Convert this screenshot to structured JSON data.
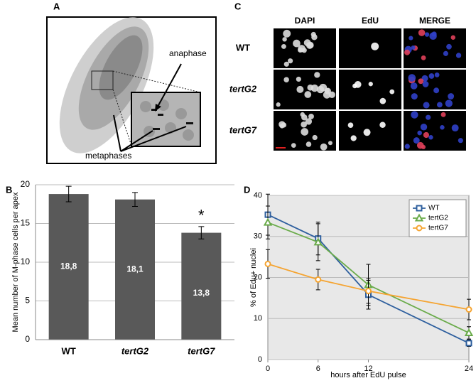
{
  "panels": {
    "a": {
      "label": "A",
      "annotations": [
        "anaphase",
        "metaphases"
      ]
    },
    "c": {
      "label": "C",
      "columns": [
        "DAPI",
        "EdU",
        "MERGE"
      ],
      "rows": [
        "WT",
        "tertG2",
        "tertG7"
      ]
    }
  },
  "chart_data": [
    {
      "type": "bar",
      "panel_label": "B",
      "y_label": "Mean number of M-phase cells per apex",
      "categories": [
        "WT",
        "tertG2",
        "tertG7"
      ],
      "values": [
        18.8,
        18.1,
        13.8
      ],
      "value_labels": [
        "18,8",
        "18,1",
        "13,8"
      ],
      "errors": [
        1.0,
        0.9,
        0.8
      ],
      "color": "#595959",
      "annotation": "*",
      "ylim": [
        0,
        20
      ],
      "yticks": [
        0,
        5,
        10,
        15,
        20
      ],
      "grid": true
    },
    {
      "type": "line",
      "panel_label": "D",
      "x_label": "hours after EdU pulse",
      "y_label": "% of Edu+ nuclei",
      "x": [
        0,
        6,
        12,
        24
      ],
      "series": [
        {
          "name": "WT",
          "color": "#2e5f9e",
          "marker": "square",
          "values": [
            35.3,
            29.5,
            15.8,
            4.0
          ],
          "errors": [
            5.0,
            4.0,
            3.5,
            0.8
          ]
        },
        {
          "name": "tertG2",
          "color": "#6aab4a",
          "marker": "triangle",
          "values": [
            33.4,
            28.6,
            18.2,
            6.5
          ],
          "errors": [
            4.0,
            4.5,
            5.0,
            1.5
          ]
        },
        {
          "name": "tertG7",
          "color": "#f5a431",
          "marker": "circle",
          "values": [
            23.3,
            19.5,
            16.7,
            12.2
          ],
          "errors": [
            3.5,
            2.5,
            3.0,
            2.5
          ]
        }
      ],
      "xlim": [
        0,
        24
      ],
      "xticks": [
        0,
        6,
        12,
        24
      ],
      "ylim": [
        0,
        40
      ],
      "yticks": [
        0,
        10,
        20,
        30,
        40
      ],
      "grid": true,
      "legend": "top-right"
    }
  ]
}
